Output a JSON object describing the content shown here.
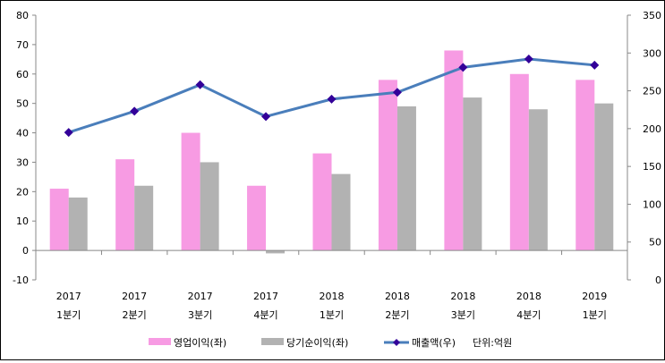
{
  "chart_data": {
    "type": "bar+line",
    "title": "",
    "categories": [
      {
        "year": "2017",
        "quarter": "1분기"
      },
      {
        "year": "2017",
        "quarter": "2분기"
      },
      {
        "year": "2017",
        "quarter": "3분기"
      },
      {
        "year": "2017",
        "quarter": "4분기"
      },
      {
        "year": "2018",
        "quarter": "1분기"
      },
      {
        "year": "2018",
        "quarter": "2분기"
      },
      {
        "year": "2018",
        "quarter": "3분기"
      },
      {
        "year": "2018",
        "quarter": "4분기"
      },
      {
        "year": "2019",
        "quarter": "1분기"
      }
    ],
    "series": [
      {
        "name": "영업이익(좌)",
        "type": "bar",
        "axis": "left",
        "color": "#f79be3",
        "values": [
          21,
          31,
          40,
          22,
          33,
          58,
          68,
          60,
          58
        ]
      },
      {
        "name": "당기순이익(좌)",
        "type": "bar",
        "axis": "left",
        "color": "#b2b2b2",
        "values": [
          18,
          22,
          30,
          -1,
          26,
          49,
          52,
          48,
          50
        ]
      },
      {
        "name": "매출액(우)",
        "type": "line",
        "axis": "right",
        "color": "#4a7ebb",
        "marker_color": "#330099",
        "values": [
          195,
          223,
          258,
          216,
          239,
          248,
          281,
          292,
          284
        ]
      }
    ],
    "left_axis": {
      "ylim": [
        -10,
        80
      ],
      "ticks": [
        -10,
        0,
        10,
        20,
        30,
        40,
        50,
        60,
        70,
        80
      ]
    },
    "right_axis": {
      "ylim": [
        0,
        350
      ],
      "ticks": [
        0,
        50,
        100,
        150,
        200,
        250,
        300,
        350
      ]
    },
    "unit_note": "단위:억원",
    "legend_position": "bottom",
    "grid": false
  }
}
